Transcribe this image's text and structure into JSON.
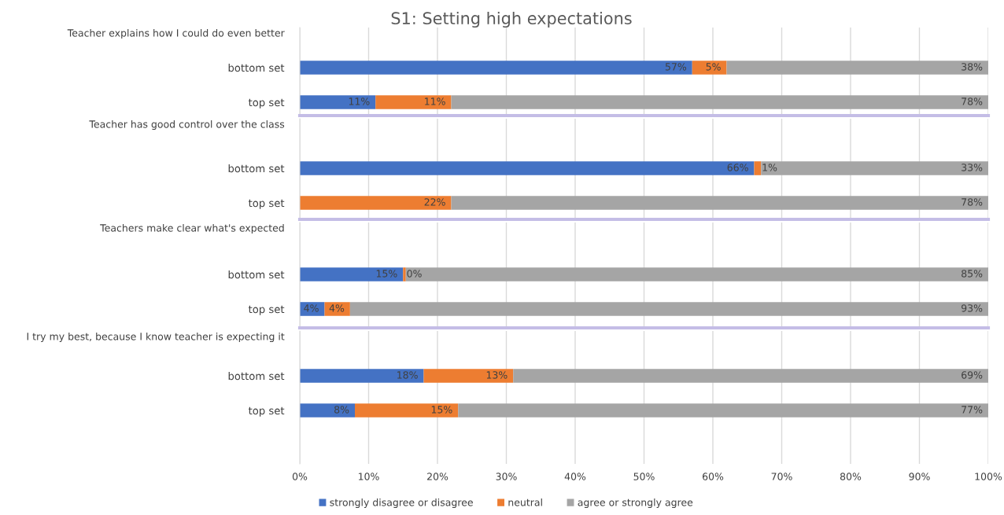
{
  "chart_data": [
    {
      "type": "bar",
      "orientation": "horizontal",
      "stacked": true,
      "title": "S1: Setting high expectations",
      "subtitle": "Teacher explains how I could do even better",
      "categories": [
        "bottom set",
        "top set"
      ],
      "xlim": [
        0,
        1
      ],
      "xticks": [
        {
          "value": 0,
          "label": null
        },
        {
          "value": 0.1,
          "label": null
        },
        {
          "value": 0.2,
          "label": null
        },
        {
          "value": 0.3,
          "label": null
        },
        {
          "value": 0.4,
          "label": null
        },
        {
          "value": 0.5,
          "label": null
        },
        {
          "value": 0.6,
          "label": null
        },
        {
          "value": 0.7,
          "label": null
        },
        {
          "value": 0.8,
          "label": null
        },
        {
          "value": 0.9,
          "label": null
        },
        {
          "value": 1,
          "label": null
        }
      ],
      "tick_labels": "y",
      "grid": "x",
      "series": [
        {
          "color": "#4472c4",
          "values": [
            0.57,
            0.11
          ],
          "value_labels": [
            "57%",
            "11%"
          ]
        },
        {
          "color": "#ed7d31",
          "values": [
            0.05,
            0.11
          ],
          "value_labels": [
            "5%",
            "11%"
          ]
        },
        {
          "color": "#a5a5a5",
          "values": [
            0.38,
            0.78
          ],
          "value_labels": [
            "38%",
            "78%"
          ]
        }
      ]
    },
    {
      "type": "bar",
      "orientation": "horizontal",
      "stacked": true,
      "subtitle": "Teacher has good control over the class",
      "categories": [
        "bottom set",
        "top set"
      ],
      "xlim": [
        0,
        1
      ],
      "xticks": [
        {
          "value": 0,
          "label": null
        },
        {
          "value": 0.1,
          "label": null
        },
        {
          "value": 0.2,
          "label": null
        },
        {
          "value": 0.3,
          "label": null
        },
        {
          "value": 0.4,
          "label": null
        },
        {
          "value": 0.5,
          "label": null
        },
        {
          "value": 0.6,
          "label": null
        },
        {
          "value": 0.7,
          "label": null
        },
        {
          "value": 0.8,
          "label": null
        },
        {
          "value": 0.9,
          "label": null
        },
        {
          "value": 1,
          "label": null
        }
      ],
      "tick_labels": "y",
      "grid": "x",
      "series": [
        {
          "color": "#4472c4",
          "values": [
            0.66,
            0
          ],
          "value_labels": [
            "66%",
            null
          ]
        },
        {
          "color": "#ed7d31",
          "values": [
            0.01,
            0.22
          ],
          "value_labels": [
            "1%",
            "22%"
          ]
        },
        {
          "color": "#a5a5a5",
          "values": [
            0.33,
            0.78
          ],
          "value_labels": [
            "33%",
            "78%"
          ]
        }
      ]
    },
    {
      "type": "bar",
      "orientation": "horizontal",
      "stacked": true,
      "subtitle": "Teachers make clear what's expected",
      "categories": [
        "bottom set",
        "top set"
      ],
      "xlim": [
        0,
        1
      ],
      "xticks": [
        {
          "value": 0,
          "label": null
        },
        {
          "value": 0.1,
          "label": null
        },
        {
          "value": 0.2,
          "label": null
        },
        {
          "value": 0.3,
          "label": null
        },
        {
          "value": 0.4,
          "label": null
        },
        {
          "value": 0.5,
          "label": null
        },
        {
          "value": 0.6,
          "label": null
        },
        {
          "value": 0.7,
          "label": null
        },
        {
          "value": 0.8,
          "label": null
        },
        {
          "value": 0.9,
          "label": null
        },
        {
          "value": 1,
          "label": null
        }
      ],
      "tick_labels": "y",
      "grid": "x",
      "series": [
        {
          "color": "#4472c4",
          "values": [
            0.15,
            0.036
          ],
          "value_labels": [
            "15%",
            "4%"
          ]
        },
        {
          "color": "#ed7d31",
          "values": [
            0.004,
            0.037
          ],
          "value_labels": [
            "0%",
            "4%"
          ]
        },
        {
          "color": "#a5a5a5",
          "values": [
            0.846,
            0.927
          ],
          "value_labels": [
            "85%",
            "93%"
          ]
        }
      ]
    },
    {
      "type": "bar",
      "orientation": "horizontal",
      "stacked": true,
      "subtitle": "I try my best, because I know teacher is expecting it",
      "categories": [
        "bottom set",
        "top set"
      ],
      "xlim": [
        0,
        1
      ],
      "xticks": [
        {
          "value": 0,
          "label": "0%"
        },
        {
          "value": 0.1,
          "label": "10%"
        },
        {
          "value": 0.2,
          "label": "20%"
        },
        {
          "value": 0.3,
          "label": "30%"
        },
        {
          "value": 0.4,
          "label": "40%"
        },
        {
          "value": 0.5,
          "label": "50%"
        },
        {
          "value": 0.6,
          "label": "60%"
        },
        {
          "value": 0.7,
          "label": "70%"
        },
        {
          "value": 0.8,
          "label": "80%"
        },
        {
          "value": 0.9,
          "label": "90%"
        },
        {
          "value": 1,
          "label": "100%"
        }
      ],
      "grid": "x",
      "legend": "bottom",
      "series": [
        {
          "name": "strongly disagree or disagree",
          "color": "#4472c4",
          "values": [
            0.18,
            0.08
          ],
          "value_labels": [
            "18%",
            "8%"
          ]
        },
        {
          "name": "neutral",
          "color": "#ed7d31",
          "values": [
            0.13,
            0.15
          ],
          "value_labels": [
            "13%",
            "15%"
          ]
        },
        {
          "name": "agree or strongly agree",
          "color": "#a5a5a5",
          "values": [
            0.69,
            0.77
          ],
          "value_labels": [
            "69%",
            "77%"
          ]
        }
      ]
    }
  ]
}
